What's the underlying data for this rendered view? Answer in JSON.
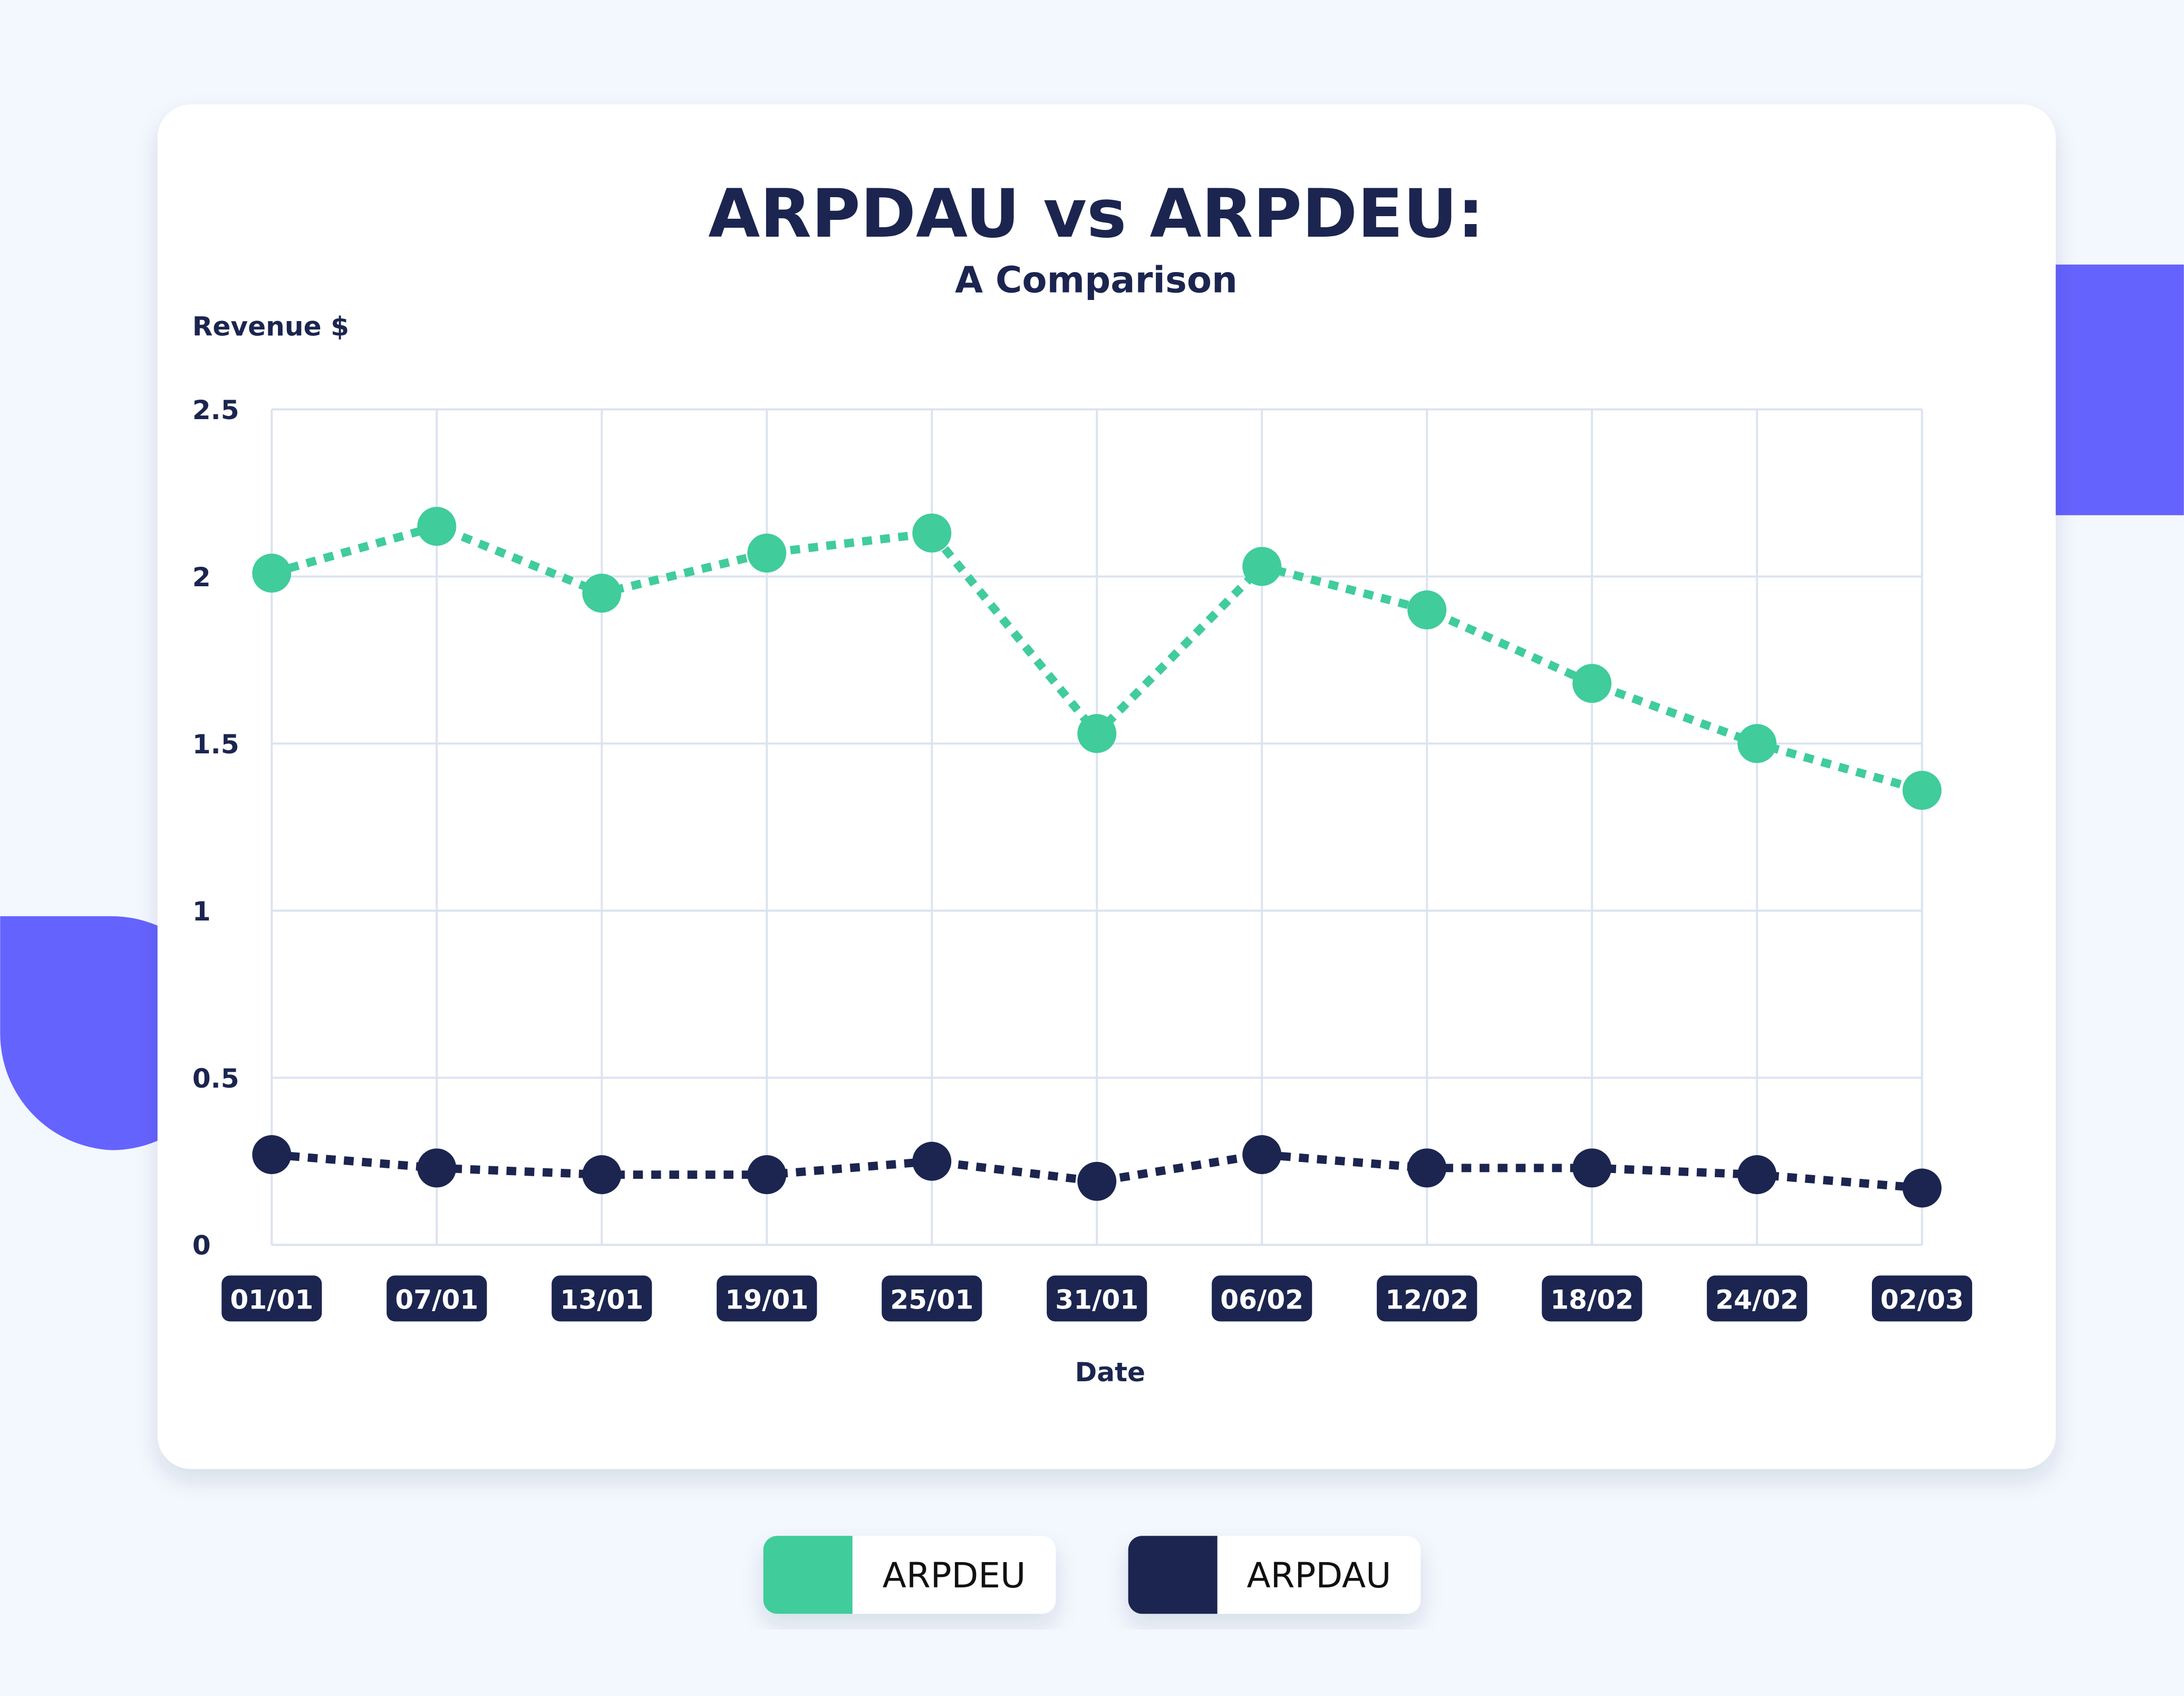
{
  "colors": {
    "bg": "#f3f7fe",
    "card": "#ffffff",
    "green": "#40cc9b",
    "navy": "#1b2550",
    "accent": "#6563fe",
    "grid": "#dce3f1"
  },
  "chart_data": {
    "type": "line",
    "title": "ARPDAU vs ARPDEU:",
    "subtitle": "A Comparison",
    "ylabel": "Revenue $",
    "xlabel": "Date",
    "ylim": [
      0,
      2.5
    ],
    "yticks": [
      "0",
      "0.5",
      "1",
      "1.5",
      "2",
      "2.5"
    ],
    "categories": [
      "01/01",
      "07/01",
      "13/01",
      "19/01",
      "25/01",
      "31/01",
      "06/02",
      "12/02",
      "18/02",
      "24/02",
      "02/03"
    ],
    "grid": true,
    "legend_position": "bottom",
    "series": [
      {
        "name": "ARPDEU",
        "color": "#40cc9b",
        "values": [
          2.01,
          2.15,
          1.95,
          2.07,
          2.13,
          1.53,
          2.03,
          1.9,
          1.68,
          1.5,
          1.36
        ]
      },
      {
        "name": "ARPDAU",
        "color": "#1b2550",
        "values": [
          0.27,
          0.23,
          0.21,
          0.21,
          0.25,
          0.19,
          0.27,
          0.23,
          0.23,
          0.21,
          0.17
        ]
      }
    ]
  }
}
